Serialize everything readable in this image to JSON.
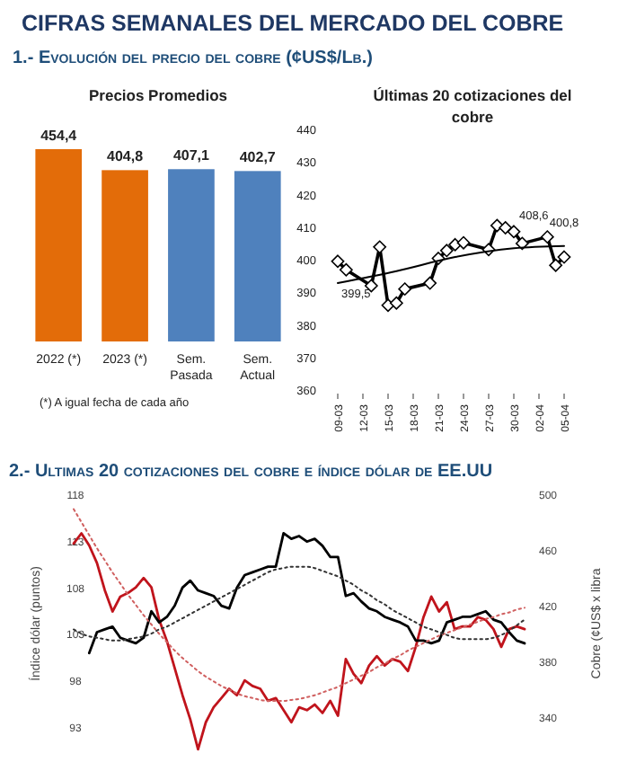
{
  "chart_data": [
    {
      "type": "other",
      "title": "CIFRAS SEMANALES DEL MERCADO DEL COBRE",
      "subtitle": "1.- Evolución del precio del cobre (¢US$/Lb.)"
    },
    {
      "type": "bar",
      "title": "Precios Promedios",
      "categories": [
        "2022 (*)",
        "2023 (*)",
        "Sem. Pasada",
        "Sem. Actual"
      ],
      "values": [
        454.4,
        404.8,
        407.1,
        402.7
      ],
      "value_labels": [
        "454,4",
        "404,8",
        "407,1",
        "402,7"
      ],
      "colors": [
        "#e36c09",
        "#e36c09",
        "#4f81bd",
        "#4f81bd"
      ],
      "annotations": [
        "(*) A igual fecha de cada año"
      ]
    },
    {
      "type": "line",
      "title": "Últimas 20 cotizaciones del cobre",
      "marker": "diamond",
      "xlim": [
        "--03-09",
        "--04-05"
      ],
      "xticks": [
        {
          "value": "--03-09",
          "label": "09-03"
        },
        {
          "value": "--03-12",
          "label": "12-03"
        },
        {
          "value": "--03-15",
          "label": "15-03"
        },
        {
          "value": "--03-18",
          "label": "18-03"
        },
        {
          "value": "--03-21",
          "label": "21-03"
        },
        {
          "value": "--03-24",
          "label": "24-03"
        },
        {
          "value": "--03-27",
          "label": "27-03"
        },
        {
          "value": "--03-30",
          "label": "30-03"
        },
        {
          "value": "--04-02",
          "label": "02-04"
        },
        {
          "value": "--04-05",
          "label": "05-04"
        }
      ],
      "ylim": [
        360,
        440
      ],
      "yticks": [
        360,
        370,
        380,
        390,
        400,
        410,
        420,
        430,
        440
      ],
      "series": [
        {
          "color": "#000000",
          "x": [
            "--03-09",
            "--03-10",
            "--03-13",
            "--03-14",
            "--03-15",
            "--03-16",
            "--03-17",
            "--03-20",
            "--03-21",
            "--03-22",
            "--03-23",
            "--03-24",
            "--03-27",
            "--03-28",
            "--03-29",
            "--03-30",
            "--03-31",
            "--04-03",
            "--04-04",
            "--04-05"
          ],
          "values": [
            399.5,
            396.9,
            392,
            403.9,
            386,
            386.7,
            391,
            392.8,
            400.4,
            402.8,
            404.6,
            405.2,
            403.1,
            410.5,
            409.8,
            408.6,
            405,
            407,
            398.3,
            400.8
          ]
        },
        {
          "color": "#000000",
          "marker": "none",
          "x": [
            "--03-09",
            "--03-16",
            "--03-23",
            "--03-30",
            "--04-05"
          ],
          "values": [
            392.8,
            396.5,
            400.8,
            403.5,
            404.2
          ]
        }
      ],
      "annotations": [
        {
          "text": "399,5",
          "x": "--03-09",
          "y": 399.5
        },
        {
          "text": "408,6",
          "x": "--03-30",
          "y": 408.6
        },
        {
          "text": "400,8",
          "x": "--04-05",
          "y": 400.8
        }
      ]
    },
    {
      "type": "line",
      "title": "2.- Ultimas 20 cotizaciones del cobre e índice dólar de EE.UU",
      "ylabel": "Índice dólar (puntos)",
      "y2label": "Cobre (¢US$ x libra",
      "ylim": [
        90,
        118
      ],
      "yticks": [
        93,
        98,
        103,
        108,
        113,
        118
      ],
      "y2lim": [
        313,
        500
      ],
      "y2ticks": [
        340,
        380,
        420,
        460,
        500
      ],
      "categories": [
        null,
        null,
        null,
        null,
        null,
        null,
        null,
        null,
        null,
        null,
        null,
        null,
        null,
        null,
        null,
        null,
        null,
        null,
        null,
        null,
        null,
        null,
        null,
        null,
        null,
        null,
        null,
        null,
        null,
        null,
        null,
        null,
        null,
        null,
        null,
        null,
        null,
        null,
        null,
        null,
        null,
        null,
        null,
        null,
        null,
        null,
        null,
        null,
        null,
        null,
        null,
        null,
        null,
        null,
        null,
        null,
        null,
        null,
        null
      ],
      "series": [
        {
          "color": "#c0141c",
          "values": [
            112.7,
            113.8,
            112.5,
            110.6,
            107.7,
            105.4,
            107,
            107.4,
            108,
            109,
            108,
            104.5,
            102.2,
            99.3,
            96.4,
            93.8,
            90.6,
            93.5,
            95.1,
            96.1,
            97.1,
            96.4,
            98.0,
            97.4,
            97.1,
            95.8,
            96.1,
            94.8,
            93.5,
            95.1,
            94.8,
            95.4,
            94.5,
            95.8,
            94.2,
            100.3,
            98.7,
            97.7,
            99.6,
            100.6,
            99.6,
            100.3,
            100.0,
            99.0,
            101.6,
            104.8,
            107,
            105.4,
            106.4,
            103.5,
            103.8,
            103.8,
            104.8,
            104.5,
            103.5,
            101.6,
            103.5,
            103.8,
            103.5
          ]
        },
        {
          "color": "#000000",
          "axis": "y2",
          "values": [
            null,
            null,
            386,
            401,
            403,
            405,
            397,
            395,
            393,
            397,
            416,
            408,
            412,
            420,
            433,
            438,
            431,
            429,
            427,
            420,
            418,
            433,
            442,
            444,
            446,
            448,
            448,
            472,
            468,
            470,
            466,
            468,
            463,
            455,
            455,
            427,
            429,
            423,
            418,
            416,
            412,
            410,
            408,
            405,
            395,
            395,
            393,
            395,
            408,
            410,
            412,
            412,
            414,
            416,
            410,
            408,
            401,
            395,
            393
          ]
        },
        {
          "color": "#d06060",
          "line_style": "dotted",
          "values": [
            116.4,
            115,
            113.6,
            112.2,
            110.9,
            109.6,
            108.4,
            107.2,
            106.1,
            105,
            104,
            103,
            102.1,
            101.2,
            100.4,
            99.7,
            99,
            98.4,
            97.9,
            97.4,
            97,
            96.6,
            96.3,
            96.1,
            95.9,
            95.8,
            95.8,
            95.8,
            95.9,
            96,
            96.2,
            96.4,
            96.7,
            97,
            97.3,
            97.7,
            98.1,
            98.5,
            98.9,
            99.4,
            99.8,
            100.3,
            100.7,
            101.2,
            101.6,
            102,
            102.4,
            102.8,
            103.1,
            103.4,
            103.7,
            104,
            104.3,
            104.6,
            104.8,
            105.1,
            105.3,
            105.6,
            105.8
          ]
        },
        {
          "color": "#333333",
          "axis": "y2",
          "line_style": "dotted",
          "values": [
            403,
            400,
            398,
            397,
            396,
            395,
            395,
            396,
            397,
            398,
            400,
            403,
            405,
            408,
            411,
            414,
            417,
            420,
            423,
            426,
            429,
            432,
            435,
            438,
            441,
            444,
            446,
            447,
            448,
            448,
            448,
            447,
            445,
            443,
            441,
            438,
            435,
            431,
            428,
            424,
            421,
            417,
            414,
            411,
            408,
            405,
            403,
            401,
            399,
            397,
            396,
            396,
            396,
            396,
            397,
            399,
            402,
            406,
            410
          ]
        }
      ]
    }
  ]
}
